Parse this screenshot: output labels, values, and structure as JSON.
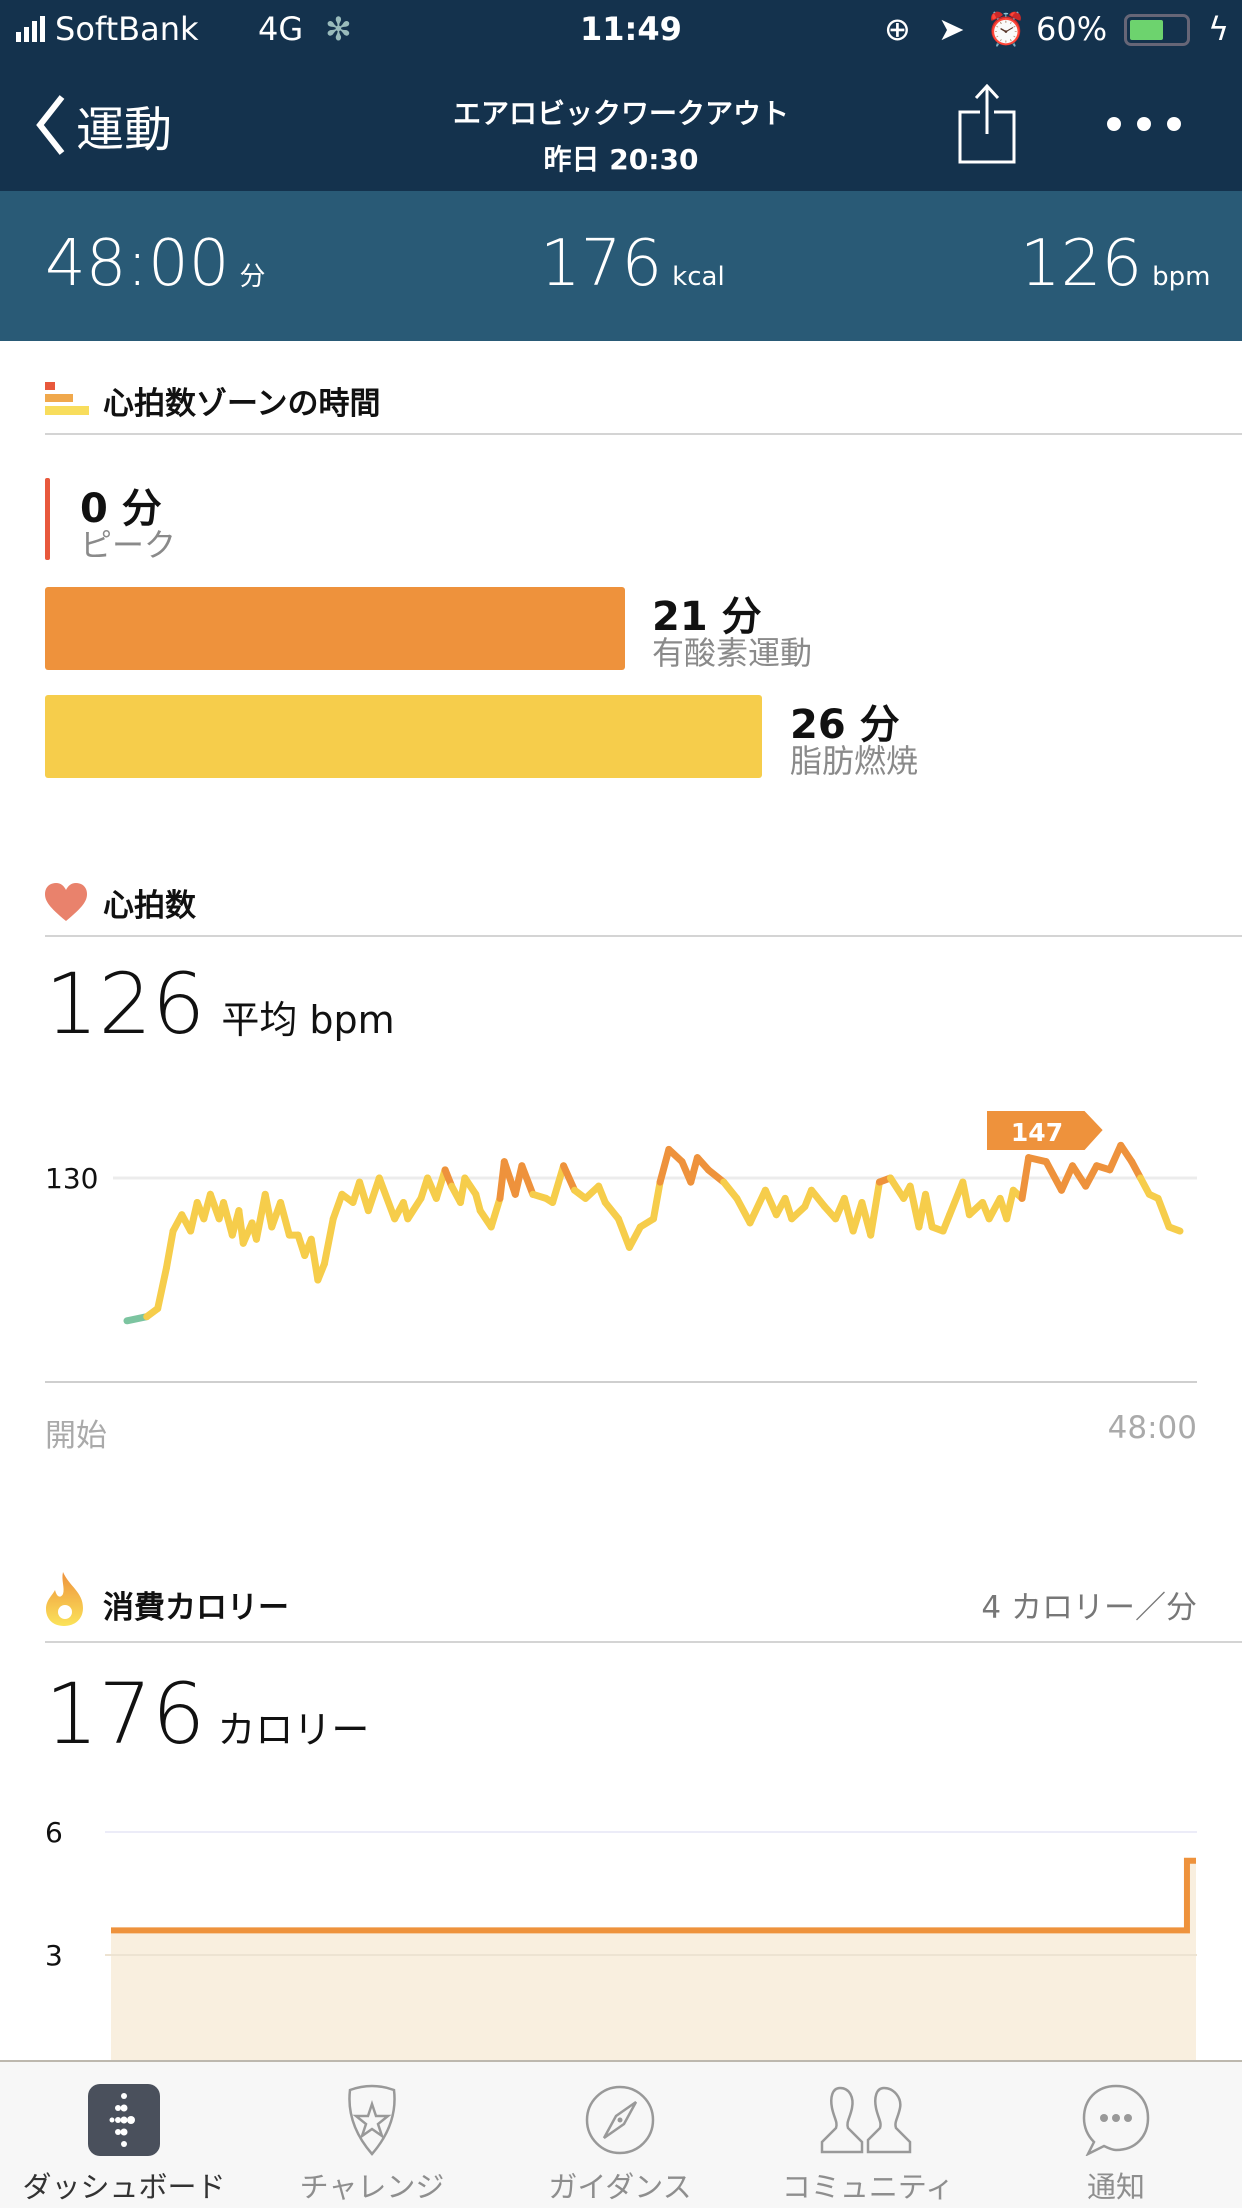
{
  "status": {
    "carrier": "SoftBank",
    "network": "4G",
    "time": "11:49",
    "battery": "60%"
  },
  "nav": {
    "back_label": "運動",
    "title": "エアロビックワークアウト",
    "subtitle": "昨日 20:30"
  },
  "stats": {
    "duration": "48:00",
    "duration_unit": "分",
    "calories": "176",
    "calories_unit": "kcal",
    "heart_rate": "126",
    "heart_rate_unit": "bpm"
  },
  "zones": {
    "heading": "心拍数ゾーンの時間",
    "items": [
      {
        "minutes": "0 分",
        "label": "ピーク",
        "value": 0,
        "color": "#e8583c"
      },
      {
        "minutes": "21 分",
        "label": "有酸素運動",
        "value": 21,
        "color": "#ee923c"
      },
      {
        "minutes": "26 分",
        "label": "脂肪燃焼",
        "value": 26,
        "color": "#f6cd4b"
      }
    ]
  },
  "heart": {
    "heading": "心拍数",
    "average": "126",
    "average_unit": "平均 bpm",
    "start_label": "開始",
    "end_label": "48:00",
    "peak_label": "147"
  },
  "calories": {
    "heading": "消費カロリー",
    "rate": "4 カロリー／分",
    "total": "176",
    "total_unit": "カロリー"
  },
  "chart_data": [
    {
      "type": "line",
      "title": "",
      "xlabel": "",
      "ylabel": "",
      "x_tick_labels": [
        "開始",
        "48:00"
      ],
      "y_tick_labels": [
        "130"
      ],
      "xlim": [
        0,
        48
      ],
      "ylim": [
        80,
        150
      ],
      "grid": true,
      "annotation": "147",
      "x": [
        0,
        0.9,
        1.4,
        1.8,
        2.1,
        2.5,
        2.9,
        3.2,
        3.5,
        3.8,
        4.2,
        4.4,
        4.8,
        5.1,
        5.3,
        5.7,
        5.9,
        6.3,
        6.6,
        7.0,
        7.4,
        7.8,
        8.1,
        8.4,
        8.7,
        9.0,
        9.4,
        9.8,
        10.3,
        10.6,
        11.0,
        11.5,
        12.2,
        12.6,
        12.8,
        13.4,
        13.7,
        14.1,
        14.5,
        14.8,
        15.2,
        15.4,
        15.9,
        16.1,
        16.6,
        17.0,
        17.2,
        17.7,
        18.0,
        18.5,
        19.1,
        19.4,
        19.9,
        20.4,
        20.9,
        21.5,
        21.8,
        22.4,
        22.9,
        23.4,
        24.0,
        24.3,
        24.7,
        25.3,
        25.7,
        26.0,
        26.5,
        27.2,
        27.8,
        28.4,
        29.1,
        29.6,
        30.0,
        30.3,
        30.9,
        31.2,
        31.8,
        32.3,
        32.7,
        33.1,
        33.5,
        33.9,
        34.3,
        34.8,
        35.4,
        35.7,
        36.1,
        36.4,
        36.7,
        37.2,
        37.5,
        38.1,
        38.4,
        39.0,
        39.3,
        39.8,
        40.1,
        40.4,
        40.8,
        41.1,
        41.9,
        42.6,
        43.1,
        43.7,
        44.2,
        44.8,
        45.3,
        45.8,
        46.2,
        46.6,
        47.0,
        47.5,
        48.0
      ],
      "y": [
        95,
        96,
        98,
        108,
        117,
        121,
        117,
        124,
        120,
        126,
        120,
        124,
        116,
        122,
        114,
        119,
        115,
        126,
        118,
        124,
        116,
        116,
        111,
        115,
        105,
        109,
        120,
        126,
        124,
        129,
        122,
        130,
        120,
        124,
        120,
        125,
        130,
        125,
        132,
        128,
        124,
        130,
        126,
        122,
        118,
        125,
        134,
        126,
        133,
        126,
        125,
        124,
        133,
        127,
        125,
        128,
        124,
        120,
        113,
        118,
        120,
        129,
        137,
        134,
        129,
        135,
        132,
        129,
        125,
        119,
        127,
        121,
        125,
        120,
        123,
        127,
        123,
        120,
        125,
        117,
        124,
        116,
        129,
        130,
        125,
        128,
        118,
        126,
        118,
        117,
        121,
        129,
        121,
        124,
        120,
        125,
        120,
        127,
        125,
        135,
        134,
        127,
        133,
        128,
        133,
        132,
        138,
        134,
        130,
        126,
        125,
        118,
        117
      ],
      "colors": {
        "fat_burn": "#f6cd4b",
        "cardio": "#ee923c",
        "rest": "#7cc4a0"
      }
    },
    {
      "type": "area",
      "title": "",
      "xlabel": "",
      "ylabel": "",
      "y_tick_labels": [
        "6",
        "3"
      ],
      "xlim": [
        0,
        48
      ],
      "ylim": [
        0,
        6
      ],
      "x": [
        0,
        47.6,
        47.6,
        48
      ],
      "y": [
        3.6,
        3.6,
        5.3,
        5.3
      ],
      "color": "#ee923c",
      "fill": "#f9efdf"
    }
  ],
  "tabs": [
    {
      "label": "ダッシュボード",
      "icon": "fitbit-logo-icon",
      "active": true
    },
    {
      "label": "チャレンジ",
      "icon": "star-badge-icon"
    },
    {
      "label": "ガイダンス",
      "icon": "compass-icon"
    },
    {
      "label": "コミュニティ",
      "icon": "people-icon"
    },
    {
      "label": "通知",
      "icon": "chat-bubble-icon"
    }
  ]
}
